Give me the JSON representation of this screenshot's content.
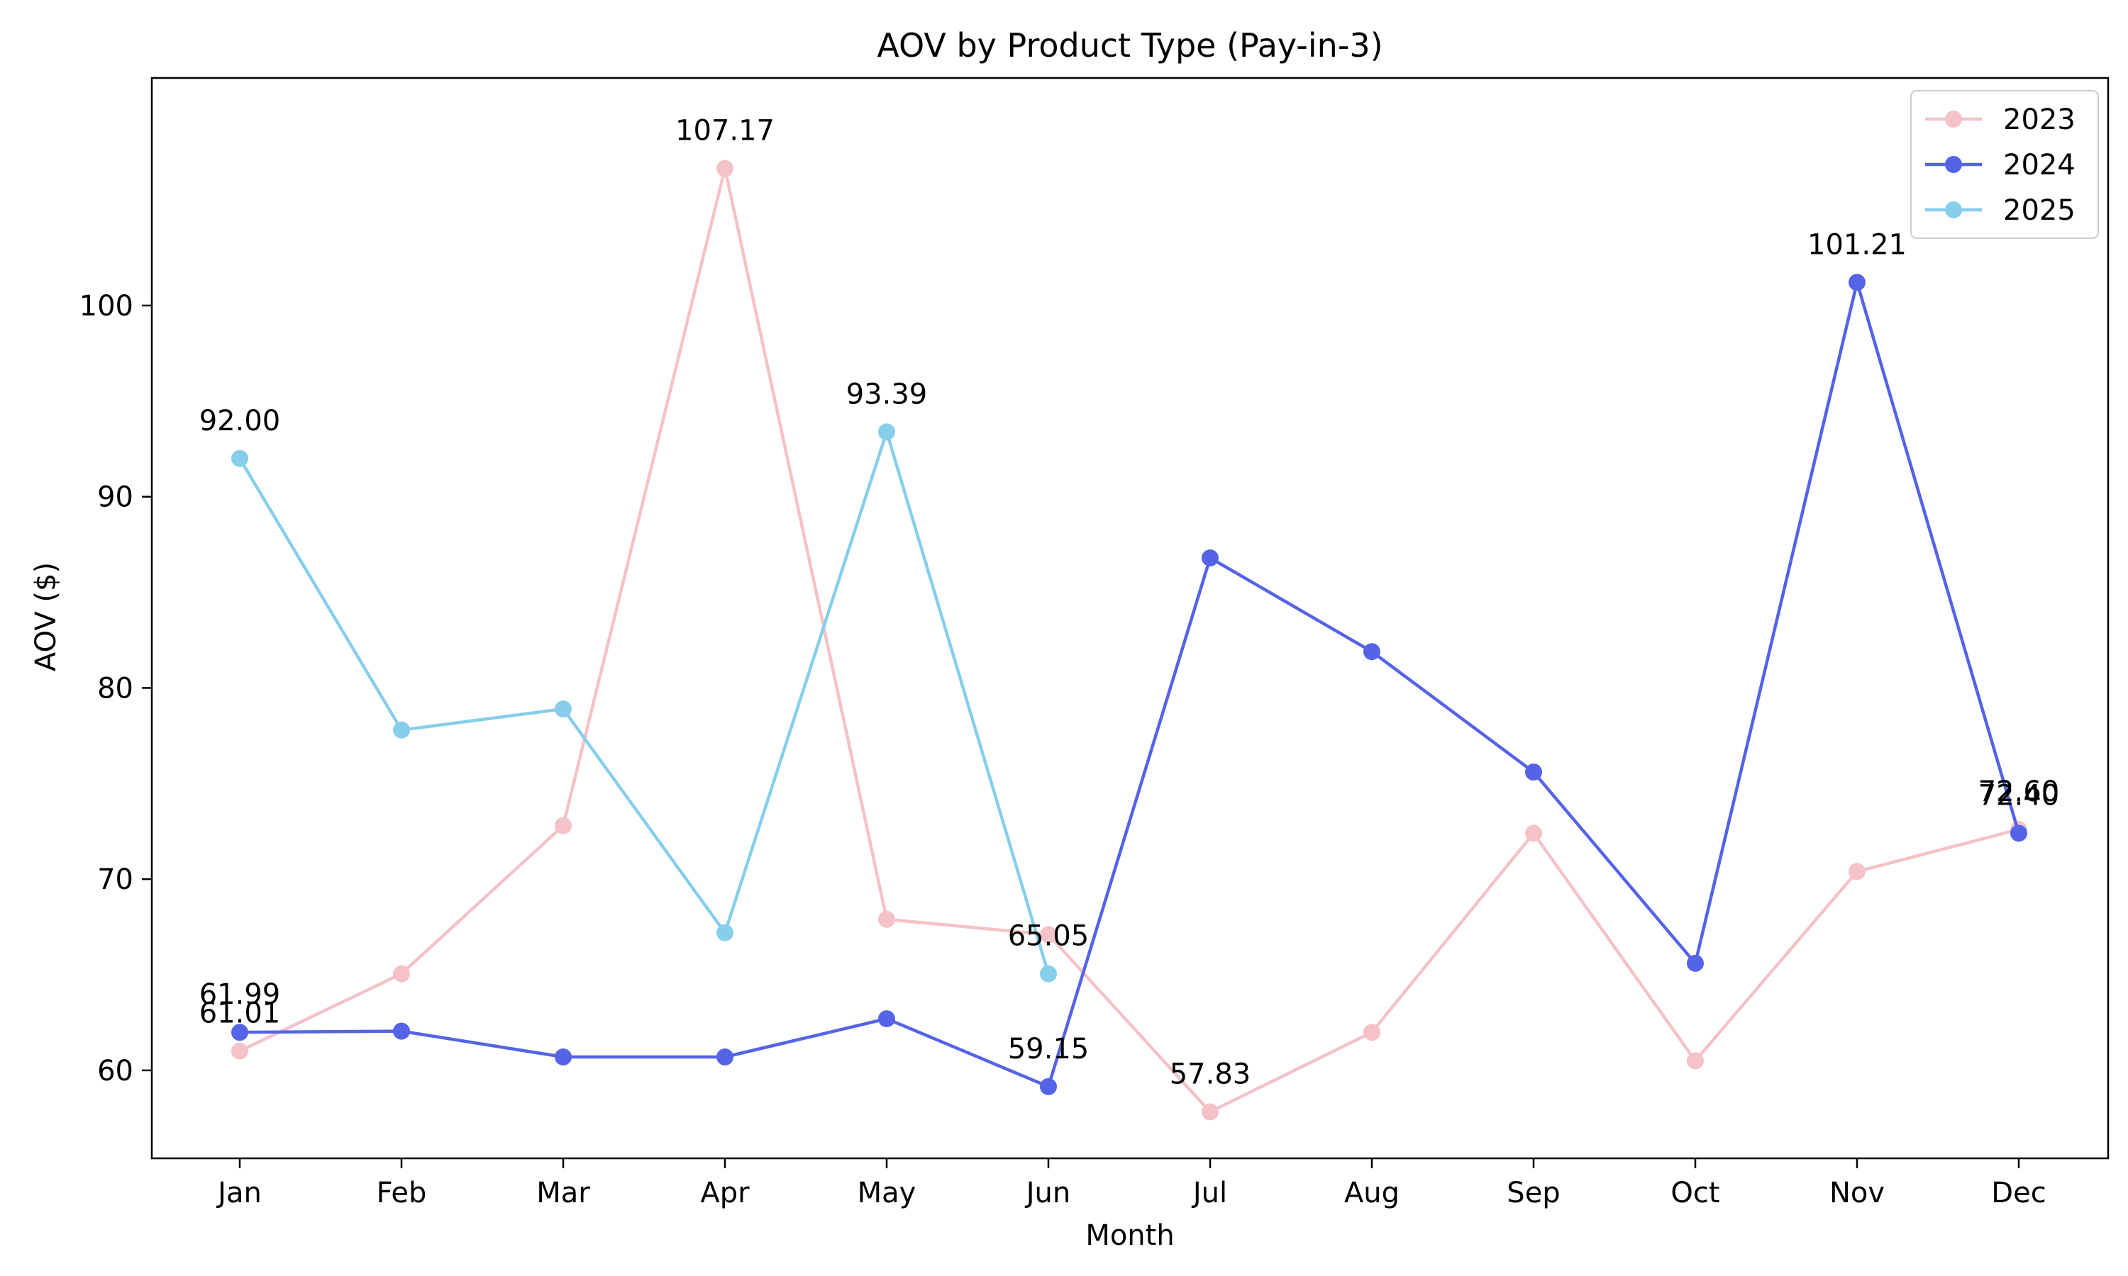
{
  "chart_data": {
    "type": "line",
    "title": "AOV by Product Type (Pay-in-3)",
    "xlabel": "Month",
    "ylabel": "AOV ($)",
    "categories": [
      "Jan",
      "Feb",
      "Mar",
      "Apr",
      "May",
      "Jun",
      "Jul",
      "Aug",
      "Sep",
      "Oct",
      "Nov",
      "Dec"
    ],
    "ylim": [
      55.4,
      111.9
    ],
    "yticks": [
      60,
      70,
      80,
      90,
      100
    ],
    "grid": false,
    "legend_position": "top-right",
    "series": [
      {
        "name": "2023",
        "color": "#f4c2c7",
        "values": [
          61.01,
          65.05,
          72.8,
          107.17,
          67.9,
          67.1,
          57.83,
          61.99,
          72.4,
          60.5,
          70.4,
          72.6
        ]
      },
      {
        "name": "2024",
        "color": "#5563e6",
        "values": [
          61.99,
          62.05,
          60.7,
          60.7,
          62.7,
          59.15,
          86.8,
          81.9,
          75.6,
          65.6,
          101.21,
          72.4
        ]
      },
      {
        "name": "2025",
        "color": "#87ceeb",
        "values": [
          92.0,
          77.8,
          78.9,
          67.2,
          93.39,
          65.05,
          null,
          null,
          null,
          null,
          null,
          null
        ]
      }
    ],
    "annotations": [
      {
        "text": "61.01",
        "category": "Jan",
        "value": 61.01
      },
      {
        "text": "61.99",
        "category": "Jan",
        "value": 61.99
      },
      {
        "text": "92.00",
        "category": "Jan",
        "value": 92.0
      },
      {
        "text": "107.17",
        "category": "Apr",
        "value": 107.17
      },
      {
        "text": "93.39",
        "category": "May",
        "value": 93.39
      },
      {
        "text": "65.05",
        "category": "Jun",
        "value": 65.05
      },
      {
        "text": "59.15",
        "category": "Jun",
        "value": 59.15
      },
      {
        "text": "57.83",
        "category": "Jul",
        "value": 57.83
      },
      {
        "text": "101.21",
        "category": "Nov",
        "value": 101.21
      },
      {
        "text": "72.60",
        "category": "Dec",
        "value": 72.6
      },
      {
        "text": "72.40",
        "category": "Dec",
        "value": 72.4
      }
    ]
  }
}
